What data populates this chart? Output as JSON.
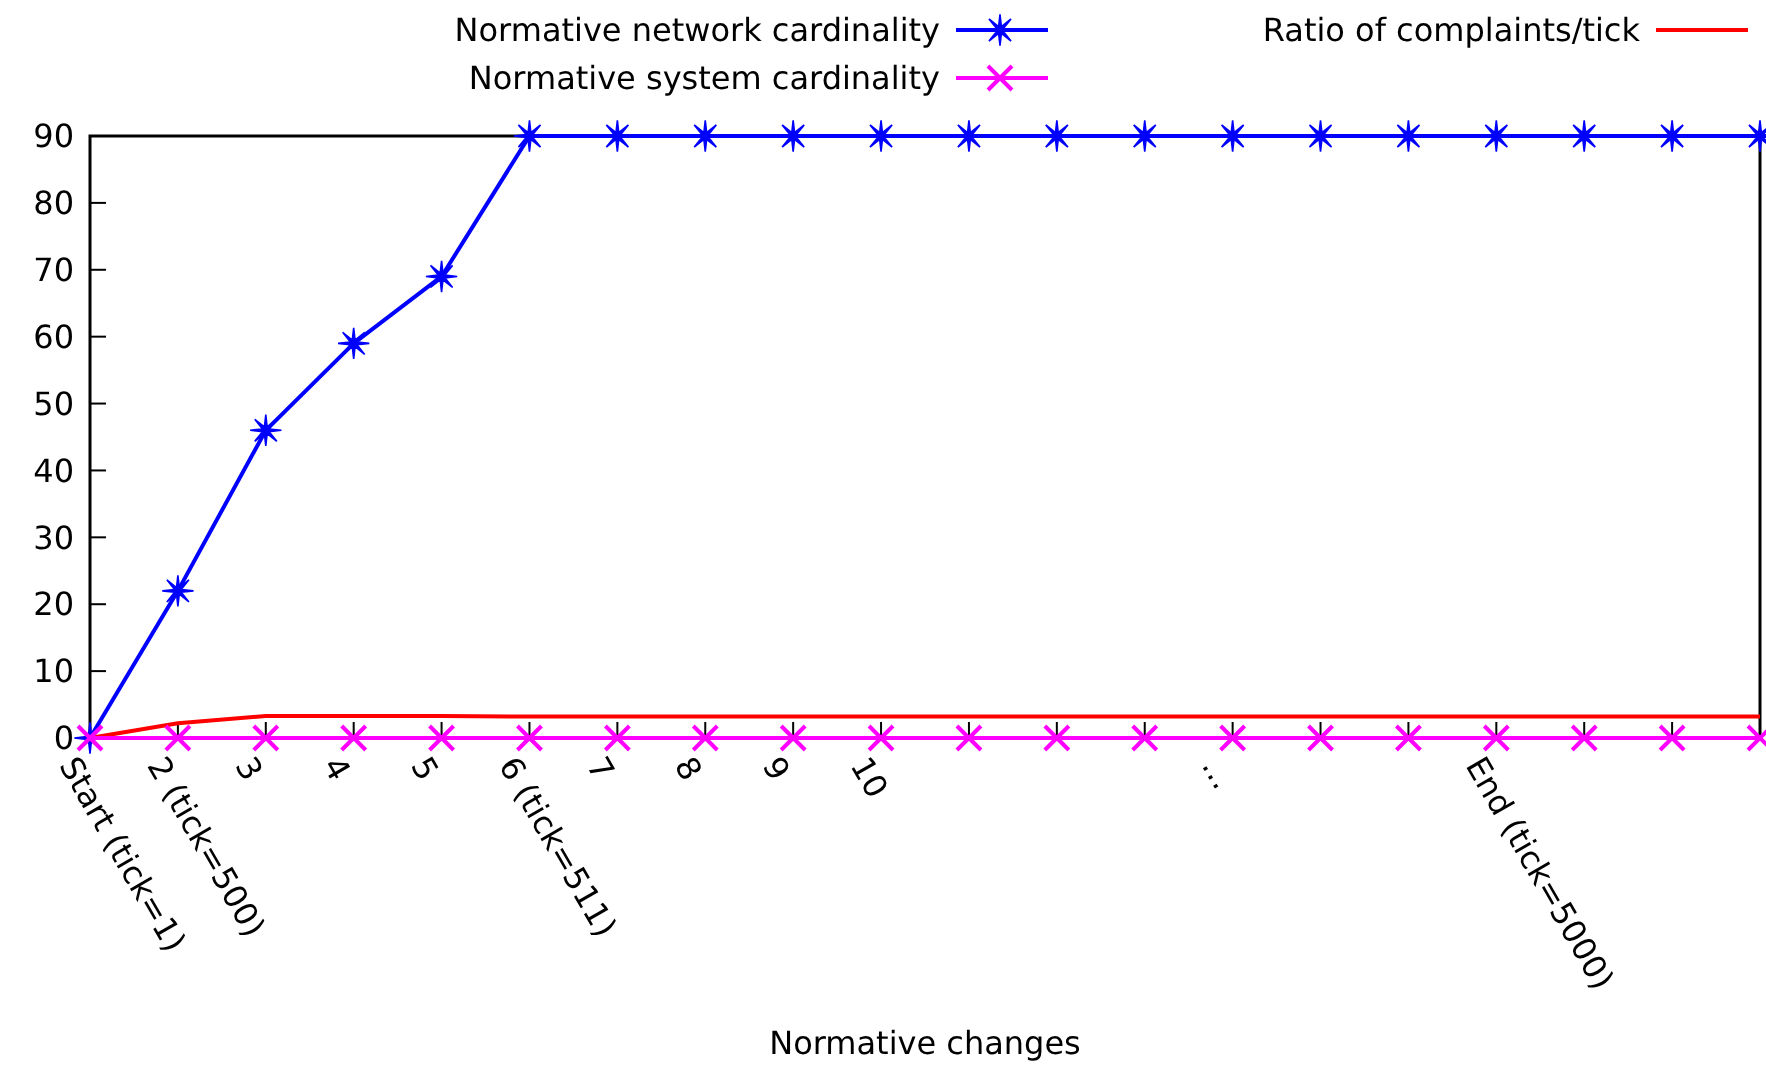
{
  "chart_data": {
    "type": "line",
    "xlabel": "Normative changes",
    "categories": [
      "Start (tick=1)",
      "2 (tick=500)",
      "3",
      "4",
      "5",
      "6 (tick=511)",
      "7",
      "8",
      "9",
      "10",
      null,
      null,
      null,
      "...",
      null,
      null,
      "End (tick=5000)",
      null,
      null,
      null
    ],
    "series": [
      {
        "name": "Normative network cardinality",
        "color": "#0000ff",
        "marker": "star",
        "values": [
          0,
          22,
          46,
          59,
          69,
          90,
          90,
          90,
          90,
          90,
          90,
          90,
          90,
          90,
          90,
          90,
          90,
          90,
          90,
          90
        ]
      },
      {
        "name": "Ratio of complaints/tick",
        "color": "#ff0000",
        "marker": "none",
        "values": [
          0,
          2.2,
          3.3,
          3.3,
          3.3,
          3.2,
          3.2,
          3.2,
          3.2,
          3.2,
          3.2,
          3.2,
          3.2,
          3.2,
          3.2,
          3.2,
          3.2,
          3.2,
          3.2,
          3.2
        ]
      },
      {
        "name": "Normative system cardinality",
        "color": "#ff00ff",
        "marker": "cross",
        "values": [
          0,
          0,
          0,
          0,
          0,
          0,
          0,
          0,
          0,
          0,
          0,
          0,
          0,
          0,
          0,
          0,
          0,
          0,
          0,
          0
        ]
      }
    ],
    "ylim": [
      0,
      90
    ],
    "yticks": [
      0,
      10,
      20,
      30,
      40,
      50,
      60,
      70,
      80,
      90
    ],
    "grid": false,
    "legend": "top",
    "line_style": "solid"
  }
}
